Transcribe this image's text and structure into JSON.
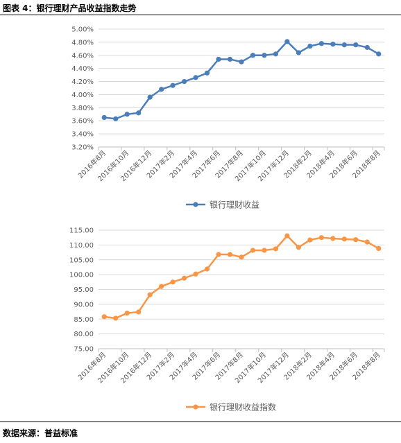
{
  "figure": {
    "title": "图表 4：银行理财产品收益指数走势",
    "source": "数据来源：普益标准"
  },
  "chart_data": [
    {
      "type": "line",
      "x": [
        "2016年8月",
        "2016年9月",
        "2016年10月",
        "2016年11月",
        "2016年12月",
        "2017年1月",
        "2017年2月",
        "2017年3月",
        "2017年4月",
        "2017年5月",
        "2017年6月",
        "2017年7月",
        "2017年8月",
        "2017年9月",
        "2017年10月",
        "2017年11月",
        "2017年12月",
        "2018年1月",
        "2018年2月",
        "2018年3月",
        "2018年4月",
        "2018年5月",
        "2018年6月",
        "2018年7月",
        "2018年8月"
      ],
      "x_tick_labels": [
        "2016年8月",
        "2016年10月",
        "2016年12月",
        "2017年2月",
        "2017年4月",
        "2017年6月",
        "2017年8月",
        "2017年10月",
        "2017年12月",
        "2018年2月",
        "2018年4月",
        "2018年6月",
        "2018年8月"
      ],
      "series": [
        {
          "name": "银行理财收益",
          "color": "#4a7ebb",
          "values": [
            3.65,
            3.63,
            3.7,
            3.72,
            3.96,
            4.08,
            4.14,
            4.2,
            4.26,
            4.33,
            4.54,
            4.54,
            4.5,
            4.6,
            4.6,
            4.62,
            4.81,
            4.64,
            4.74,
            4.78,
            4.77,
            4.76,
            4.76,
            4.72,
            4.62
          ]
        }
      ],
      "y_ticks": [
        "3.20%",
        "3.40%",
        "3.60%",
        "3.80%",
        "4.00%",
        "4.20%",
        "4.40%",
        "4.60%",
        "4.80%",
        "5.00%"
      ],
      "ylim": [
        3.2,
        5.0
      ],
      "grid": true,
      "legend_position": "bottom"
    },
    {
      "type": "line",
      "x": [
        "2016年8月",
        "2016年9月",
        "2016年10月",
        "2016年11月",
        "2016年12月",
        "2017年1月",
        "2017年2月",
        "2017年3月",
        "2017年4月",
        "2017年5月",
        "2017年6月",
        "2017年7月",
        "2017年8月",
        "2017年9月",
        "2017年10月",
        "2017年11月",
        "2017年12月",
        "2018年1月",
        "2018年2月",
        "2018年3月",
        "2018年4月",
        "2018年5月",
        "2018年6月",
        "2018年7月",
        "2018年8月"
      ],
      "x_tick_labels": [
        "2016年8月",
        "2016年10月",
        "2016年12月",
        "2017年2月",
        "2017年4月",
        "2017年6月",
        "2017年8月",
        "2017年10月",
        "2017年12月",
        "2018年2月",
        "2018年4月",
        "2018年6月",
        "2018年8月"
      ],
      "series": [
        {
          "name": "银行理财收益指数",
          "color": "#f79646",
          "values": [
            85.8,
            85.3,
            87.0,
            87.4,
            93.2,
            96.0,
            97.5,
            98.8,
            100.2,
            101.9,
            106.8,
            106.8,
            105.9,
            108.2,
            108.2,
            108.7,
            113.1,
            109.2,
            111.7,
            112.5,
            112.2,
            112.0,
            111.8,
            111.0,
            108.8
          ]
        }
      ],
      "y_ticks": [
        "75.00",
        "80.00",
        "85.00",
        "90.00",
        "95.00",
        "100.00",
        "105.00",
        "110.00",
        "115.00"
      ],
      "ylim": [
        75,
        115
      ],
      "grid": true,
      "legend_position": "bottom"
    }
  ]
}
